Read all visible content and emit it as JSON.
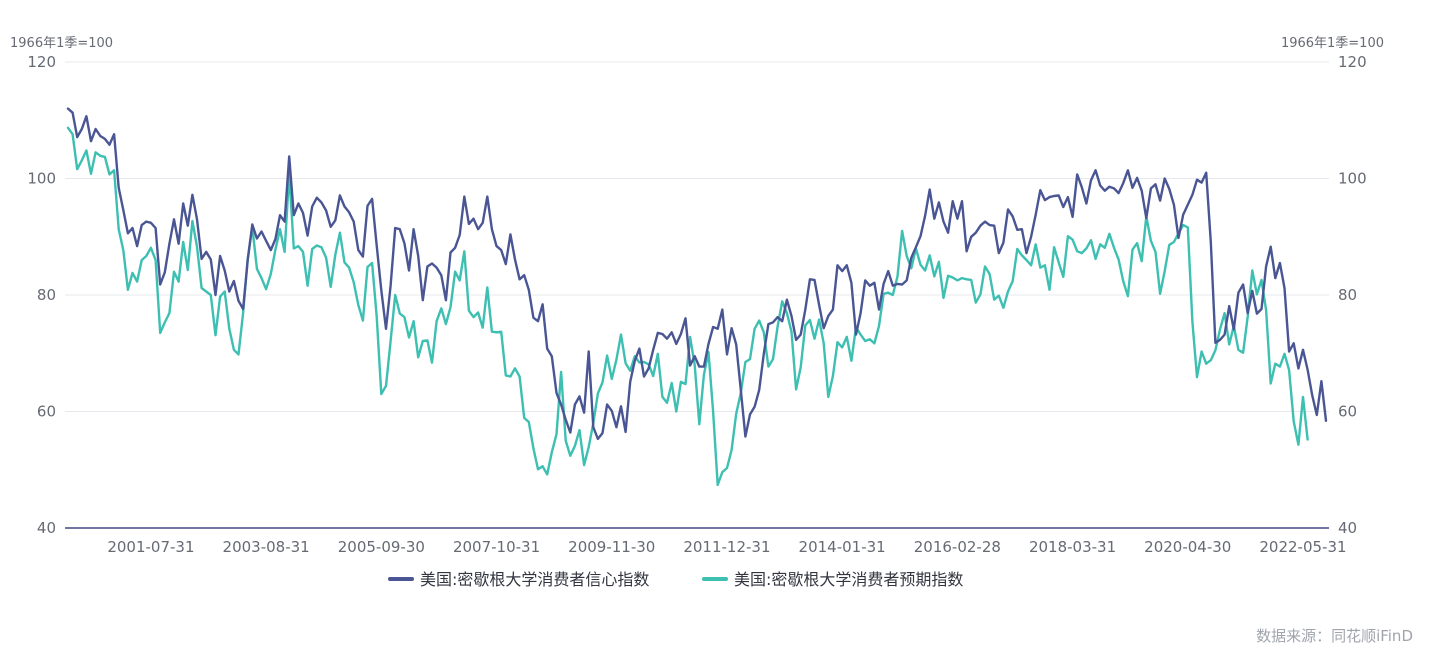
{
  "chart_data": {
    "type": "line",
    "left_unit": "1966年1季=100",
    "right_unit": "1966年1季=100",
    "ylim": [
      40,
      120
    ],
    "yticks": [
      40,
      60,
      80,
      100,
      120
    ],
    "xticks": [
      "2001-07-31",
      "2003-08-31",
      "2005-09-30",
      "2007-10-31",
      "2009-11-30",
      "2011-12-31",
      "2014-01-31",
      "2016-02-28",
      "2018-03-31",
      "2020-04-30",
      "2022-05-31"
    ],
    "grid": "horizontal",
    "legend_position": "bottom",
    "x_format": "YYYY-MM",
    "x_start": "2000-01",
    "series": [
      {
        "name": "美国:密歇根大学消费者信心指数",
        "color": "#4a5694",
        "values": [
          112.0,
          111.3,
          107.1,
          108.5,
          110.7,
          106.4,
          108.5,
          107.3,
          106.8,
          105.8,
          107.6,
          98.4,
          94.6,
          90.6,
          91.5,
          88.4,
          92.0,
          92.6,
          92.4,
          91.5,
          81.8,
          83.9,
          88.8,
          93.0,
          88.8,
          95.7,
          91.9,
          97.2,
          93.0,
          86.2,
          87.4,
          86.1,
          80.0,
          86.7,
          84.2,
          80.6,
          82.4,
          79.0,
          77.6,
          86.0,
          92.1,
          89.7,
          90.9,
          89.3,
          87.7,
          89.6,
          93.7,
          92.6,
          103.8,
          93.7,
          95.7,
          94.1,
          90.2,
          95.2,
          96.7,
          95.9,
          94.5,
          91.7,
          92.8,
          97.1,
          95.2,
          94.2,
          92.6,
          87.7,
          86.6,
          95.3,
          96.5,
          88.5,
          80.8,
          74.2,
          81.6,
          91.5,
          91.3,
          88.9,
          84.2,
          91.3,
          86.7,
          79.1,
          84.9,
          85.4,
          84.7,
          83.4,
          79.1,
          87.3,
          88.1,
          90.3,
          96.9,
          92.2,
          93.1,
          91.3,
          92.4,
          96.9,
          91.3,
          88.4,
          87.7,
          85.3,
          90.4,
          86.1,
          82.7,
          83.4,
          80.9,
          76.1,
          75.5,
          78.4,
          70.8,
          69.5,
          63.2,
          61.2,
          58.6,
          56.4,
          61.2,
          62.6,
          59.8,
          70.3,
          57.3,
          55.3,
          56.3,
          61.2,
          60.1,
          57.3,
          60.9,
          56.5,
          65.1,
          68.7,
          70.8,
          66.0,
          67.4,
          70.6,
          73.5,
          73.3,
          72.5,
          73.6,
          71.6,
          73.3,
          76.0,
          67.9,
          69.5,
          67.7,
          67.7,
          71.6,
          74.5,
          74.2,
          77.5,
          69.8,
          74.3,
          71.5,
          63.7,
          55.7,
          59.5,
          60.8,
          63.7,
          69.9,
          75.0,
          75.3,
          76.2,
          75.5,
          79.2,
          76.4,
          72.3,
          73.2,
          77.5,
          82.7,
          82.6,
          78.3,
          74.3,
          76.4,
          77.5,
          85.1,
          84.1,
          85.1,
          82.1,
          73.2,
          76.9,
          82.5,
          81.6,
          82.1,
          77.5,
          81.9,
          84.1,
          81.6,
          81.9,
          81.8,
          82.5,
          86.4,
          88.2,
          90.1,
          93.6,
          98.1,
          93.1,
          95.9,
          92.6,
          90.7,
          96.1,
          93.1,
          96.1,
          87.5,
          90.0,
          90.7,
          91.9,
          92.6,
          92.0,
          91.9,
          87.2,
          89.0,
          94.7,
          93.5,
          91.2,
          91.3,
          87.2,
          90.0,
          93.8,
          98.0,
          96.3,
          96.8,
          97.0,
          97.1,
          95.1,
          96.8,
          93.4,
          100.7,
          98.5,
          95.7,
          99.7,
          101.4,
          98.8,
          97.9,
          98.6,
          98.3,
          97.5,
          99.2,
          101.4,
          98.4,
          100.1,
          97.9,
          93.2,
          98.3,
          99.0,
          96.2,
          100.0,
          98.2,
          95.5,
          89.8,
          93.8,
          95.5,
          97.2,
          99.8,
          99.3,
          101.0,
          89.1,
          71.8,
          72.3,
          73.2,
          78.1,
          74.1,
          80.4,
          81.8,
          76.9,
          80.7,
          76.8,
          77.6,
          84.9,
          88.3,
          82.9,
          85.5,
          81.2,
          70.3,
          71.7,
          67.4,
          70.6,
          67.2,
          62.8,
          59.4,
          65.2,
          58.4
        ]
      },
      {
        "name": "美国:密歇根大学消费者预期指数",
        "color": "#3dbfb2",
        "values": [
          108.7,
          107.6,
          101.6,
          103.1,
          104.8,
          100.8,
          104.5,
          103.9,
          103.7,
          100.7,
          101.4,
          91.3,
          87.7,
          80.9,
          83.8,
          82.3,
          86.0,
          86.7,
          88.1,
          86.0,
          73.5,
          75.3,
          76.9,
          84.0,
          82.3,
          89.1,
          84.3,
          92.7,
          88.3,
          81.2,
          80.6,
          80.0,
          73.1,
          79.7,
          80.6,
          74.2,
          70.6,
          69.8,
          76.9,
          86.2,
          91.7,
          84.5,
          82.9,
          81.0,
          83.6,
          87.8,
          91.3,
          87.4,
          100.9,
          88.0,
          88.4,
          87.4,
          81.6,
          87.9,
          88.5,
          88.2,
          86.4,
          81.4,
          86.9,
          90.7,
          85.6,
          84.7,
          82.2,
          78.3,
          75.6,
          84.8,
          85.5,
          76.3,
          63.0,
          64.4,
          72.1,
          80.0,
          76.8,
          76.2,
          72.7,
          75.5,
          69.3,
          72.1,
          72.2,
          68.4,
          75.5,
          77.7,
          75.0,
          77.9,
          84.0,
          82.5,
          87.5,
          77.3,
          76.2,
          77.0,
          74.4,
          81.3,
          73.7,
          73.6,
          73.7,
          66.2,
          66.0,
          67.4,
          66.0,
          58.9,
          58.2,
          53.7,
          50.1,
          50.6,
          49.2,
          53.0,
          56.1,
          66.8,
          55.0,
          52.4,
          54.1,
          56.8,
          50.8,
          53.9,
          58.0,
          63.1,
          65.0,
          69.6,
          65.6,
          68.9,
          73.2,
          68.3,
          67.0,
          69.5,
          68.4,
          68.5,
          68.1,
          66.1,
          69.9,
          62.5,
          61.5,
          64.9,
          60.0,
          65.1,
          64.7,
          72.8,
          68.0,
          57.8,
          66.3,
          70.2,
          60.0,
          47.4,
          49.6,
          50.3,
          53.4,
          59.6,
          63.2,
          68.5,
          69.0,
          74.2,
          75.6,
          73.6,
          67.7,
          69.0,
          74.6,
          78.9,
          76.9,
          73.7,
          63.8,
          67.6,
          74.8,
          75.7,
          72.5,
          75.8,
          71.7,
          62.5,
          66.1,
          71.9,
          71.0,
          72.8,
          68.7,
          74.5,
          73.2,
          72.1,
          72.4,
          71.7,
          74.7,
          80.2,
          80.4,
          80.0,
          83.2,
          91.0,
          86.7,
          84.6,
          88.0,
          85.2,
          84.2,
          86.8,
          83.2,
          85.7,
          79.5,
          83.3,
          83.0,
          82.5,
          82.9,
          82.7,
          82.6,
          78.7,
          80.1,
          84.9,
          83.6,
          79.2,
          79.9,
          77.8,
          80.6,
          82.4,
          87.9,
          86.8,
          86.0,
          85.1,
          88.7,
          84.7,
          85.1,
          80.9,
          88.2,
          85.6,
          83.1,
          90.1,
          89.5,
          87.5,
          87.2,
          88.0,
          89.4,
          86.2,
          88.7,
          88.1,
          90.5,
          88.1,
          86.1,
          82.4,
          79.8,
          87.8,
          88.9,
          85.8,
          93.5,
          89.3,
          87.4,
          80.2,
          84.1,
          88.6,
          89.1,
          90.6,
          92.0,
          91.6,
          75.4,
          65.9,
          70.3,
          68.2,
          68.8,
          70.5,
          74.1,
          76.9,
          71.5,
          74.7,
          70.6,
          70.1,
          76.3,
          84.2,
          80.1,
          82.6,
          77.4,
          64.8,
          68.2,
          67.7,
          69.9,
          67.1,
          58.3,
          54.3,
          62.5,
          55.2
        ]
      }
    ]
  },
  "source_text": "数据来源：同花顺iFinD"
}
